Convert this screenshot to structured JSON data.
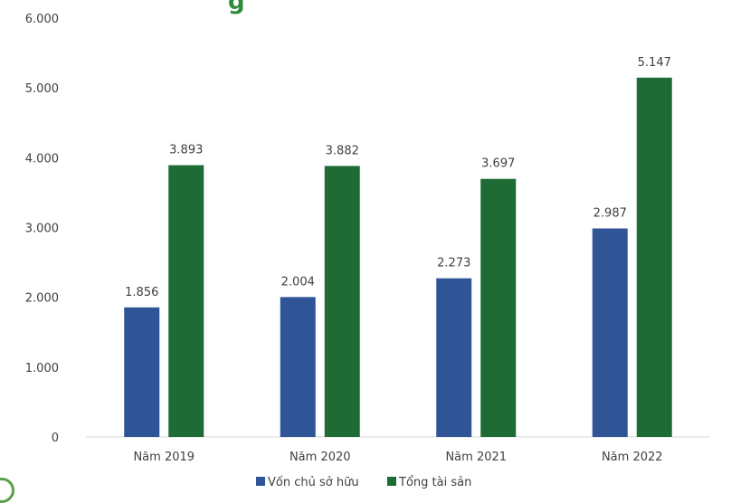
{
  "chart_data": {
    "type": "bar",
    "title_fragment": "g",
    "categories": [
      "Năm 2019",
      "Năm 2020",
      "Năm 2021",
      "Năm 2022"
    ],
    "series": [
      {
        "name": "Vốn chủ sở hữu",
        "color": "#2f5597",
        "values": [
          1856,
          2004,
          2273,
          2987
        ],
        "labels": [
          "1.856",
          "2.004",
          "2.273",
          "2.987"
        ]
      },
      {
        "name": "Tổng tài sản",
        "color": "#1e6b35",
        "values": [
          3893,
          3882,
          3697,
          5147
        ],
        "labels": [
          "3.893",
          "3.882",
          "3.697",
          "5.147"
        ]
      }
    ],
    "ylim": [
      0,
      6000
    ],
    "yticks": [
      0,
      1000,
      2000,
      3000,
      4000,
      5000,
      6000
    ],
    "ytick_labels": [
      "0",
      "1.000",
      "2.000",
      "3.000",
      "4.000",
      "5.000",
      "6.000"
    ],
    "legend_position": "bottom",
    "grid": false
  }
}
